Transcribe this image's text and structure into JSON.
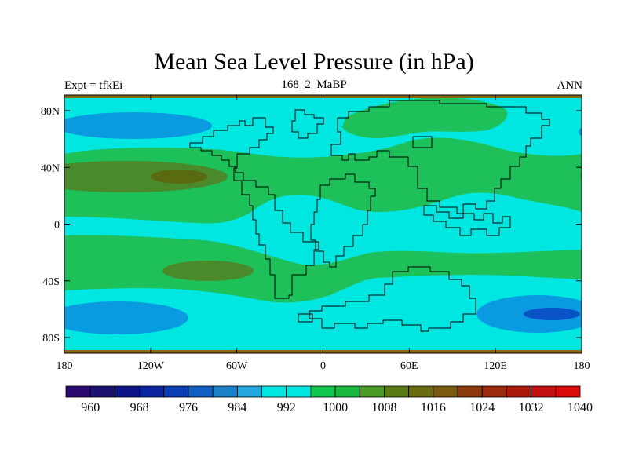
{
  "title": "Mean Sea Level Pressure (in hPa)",
  "left_label": "Expt = tfkEi",
  "center_label": "168_2_MaBP",
  "right_label": "ANN",
  "x_ticks": [
    "180",
    "120W",
    "60W",
    "0",
    "60E",
    "120E",
    "180"
  ],
  "y_ticks": [
    "80N",
    "40N",
    "0",
    "40S",
    "80S"
  ],
  "colorbar": {
    "colors": [
      "#2a0a6e",
      "#1a1070",
      "#0c1487",
      "#0a24a0",
      "#0b3cb4",
      "#1060c4",
      "#1a80c8",
      "#22a8dc",
      "#00e6e0",
      "#00e6e0",
      "#10c850",
      "#18b840",
      "#4a9a28",
      "#5a7a18",
      "#6a6a10",
      "#7a5a10",
      "#8a3a0c",
      "#9a2a0c",
      "#aa1a0c",
      "#c21010",
      "#d80a0a"
    ],
    "labels": [
      "960",
      "968",
      "976",
      "984",
      "992",
      "1000",
      "1008",
      "1016",
      "1024",
      "1032",
      "1040"
    ]
  },
  "map_colors": {
    "low_deep": "#0a52c8",
    "low": "#0a9ae0",
    "base": "#00e6e0",
    "mid": "#1ec05a",
    "high": "#4a8a2a",
    "higher": "#5a6a10",
    "border": "#8a6a10"
  }
}
